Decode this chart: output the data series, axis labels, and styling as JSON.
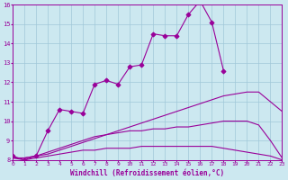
{
  "title": "",
  "xlabel": "Windchill (Refroidissement éolien,°C)",
  "ylabel": "",
  "x": [
    0,
    1,
    2,
    3,
    4,
    5,
    6,
    7,
    8,
    9,
    10,
    11,
    12,
    13,
    14,
    15,
    16,
    17,
    18,
    19,
    20,
    21,
    22,
    23
  ],
  "line1_marked": [
    8.2,
    8.0,
    8.2,
    9.5,
    10.6,
    10.5,
    10.4,
    11.9,
    12.1,
    11.9,
    12.8,
    12.9,
    14.5,
    14.4,
    14.4,
    15.5,
    16.2,
    15.1,
    12.6,
    null,
    null,
    null,
    null,
    null
  ],
  "line2_smooth_diag": [
    8.1,
    8.1,
    8.2,
    8.3,
    8.5,
    8.7,
    8.9,
    9.1,
    9.3,
    9.5,
    9.7,
    9.9,
    10.1,
    10.3,
    10.5,
    10.7,
    10.9,
    11.1,
    11.3,
    11.4,
    11.5,
    11.5,
    11.0,
    10.5
  ],
  "line3_smooth_mid": [
    8.1,
    8.1,
    8.2,
    8.4,
    8.6,
    8.8,
    9.0,
    9.2,
    9.3,
    9.4,
    9.5,
    9.5,
    9.6,
    9.6,
    9.7,
    9.7,
    9.8,
    9.9,
    10.0,
    10.0,
    10.0,
    9.8,
    9.0,
    8.1
  ],
  "line4_smooth_low": [
    8.1,
    8.0,
    8.1,
    8.2,
    8.3,
    8.4,
    8.5,
    8.5,
    8.6,
    8.6,
    8.6,
    8.7,
    8.7,
    8.7,
    8.7,
    8.7,
    8.7,
    8.7,
    8.6,
    8.5,
    8.4,
    8.3,
    8.2,
    8.0
  ],
  "bg_color": "#cce8f0",
  "grid_color": "#a0c8d8",
  "line_color": "#990099",
  "ylim": [
    8,
    16
  ],
  "xlim": [
    0,
    23
  ],
  "yticks": [
    8,
    9,
    10,
    11,
    12,
    13,
    14,
    15,
    16
  ],
  "xticks": [
    0,
    1,
    2,
    3,
    4,
    5,
    6,
    7,
    8,
    9,
    10,
    11,
    12,
    13,
    14,
    15,
    16,
    17,
    18,
    19,
    20,
    21,
    22,
    23
  ]
}
